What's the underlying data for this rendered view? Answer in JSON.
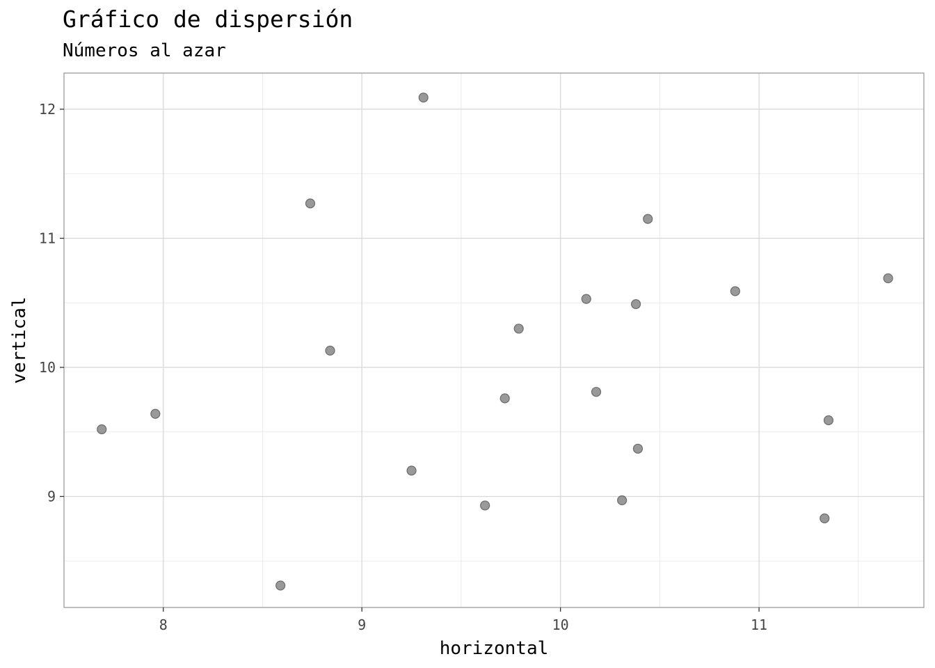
{
  "chart_data": {
    "type": "scatter",
    "title": "Gráfico de dispersión",
    "subtitle": "Números al azar",
    "xlabel": "horizontal",
    "ylabel": "vertical",
    "xlim": [
      7.5,
      11.83
    ],
    "ylim": [
      8.14,
      12.28
    ],
    "xticks": [
      8,
      9,
      10,
      11
    ],
    "yticks": [
      9,
      10,
      11,
      12
    ],
    "x_tick_labels": [
      "8",
      "9",
      "10",
      "11"
    ],
    "y_tick_labels": [
      "9",
      "10",
      "11",
      "12"
    ],
    "grid": true,
    "point_color": "#808080",
    "points": [
      {
        "x": 7.69,
        "y": 9.52
      },
      {
        "x": 7.96,
        "y": 9.64
      },
      {
        "x": 8.59,
        "y": 8.31
      },
      {
        "x": 8.74,
        "y": 11.27
      },
      {
        "x": 8.84,
        "y": 10.13
      },
      {
        "x": 9.25,
        "y": 9.2
      },
      {
        "x": 9.31,
        "y": 12.09
      },
      {
        "x": 9.62,
        "y": 8.93
      },
      {
        "x": 9.72,
        "y": 9.76
      },
      {
        "x": 9.79,
        "y": 10.3
      },
      {
        "x": 10.13,
        "y": 10.53
      },
      {
        "x": 10.18,
        "y": 9.81
      },
      {
        "x": 10.31,
        "y": 8.97
      },
      {
        "x": 10.38,
        "y": 10.49
      },
      {
        "x": 10.39,
        "y": 9.37
      },
      {
        "x": 10.44,
        "y": 11.15
      },
      {
        "x": 10.88,
        "y": 10.59
      },
      {
        "x": 11.33,
        "y": 8.83
      },
      {
        "x": 11.35,
        "y": 9.59
      },
      {
        "x": 11.65,
        "y": 10.69
      }
    ]
  }
}
